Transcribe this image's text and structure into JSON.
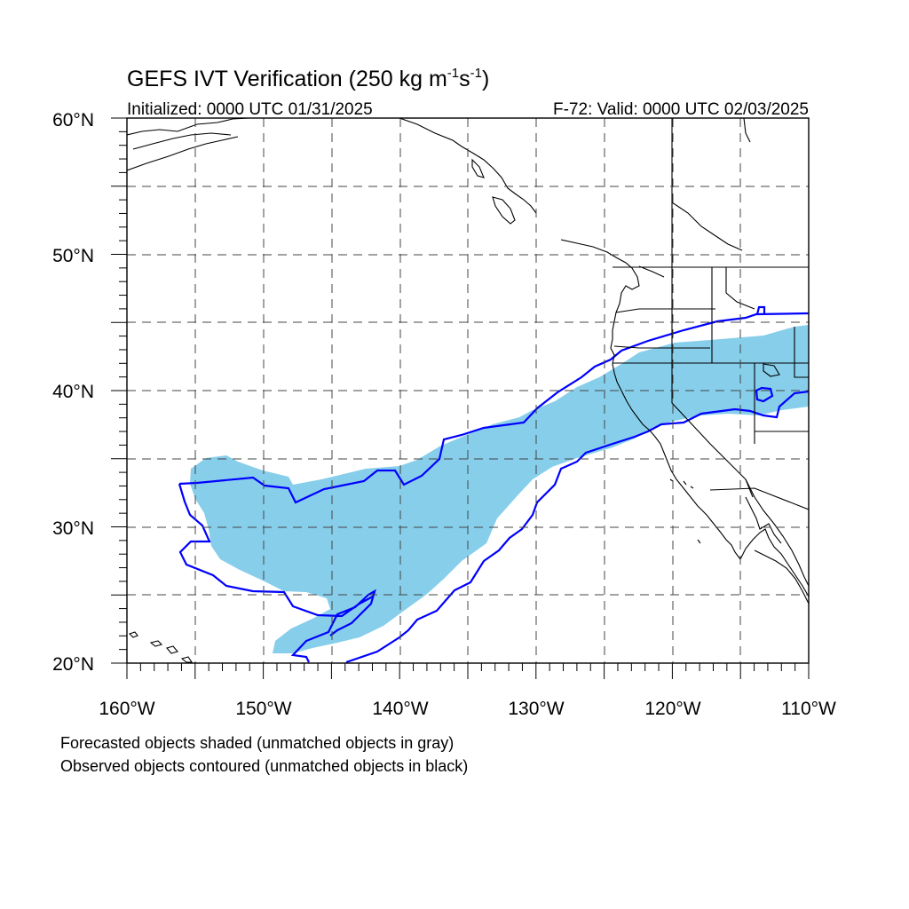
{
  "map": {
    "title_main": "GEFS IVT Verification (250 kg m",
    "title_exp1": "-1",
    "title_mid": "s",
    "title_exp2": "-1",
    "title_end": ")",
    "initialized": "Initialized: 0000 UTC 01/31/2025",
    "valid": "F-72: Valid: 0000 UTC 02/03/2025",
    "lat_labels": [
      "60°N",
      "50°N",
      "40°N",
      "30°N",
      "20°N"
    ],
    "lon_labels": [
      "160°W",
      "150°W",
      "140°W",
      "130°W",
      "120°W",
      "110°W"
    ],
    "extent": {
      "lon_min": -160,
      "lon_max": -110,
      "lat_min": 20,
      "lat_max": 60
    },
    "footnote_1": "Forecasted objects shaded (unmatched objects in gray)",
    "footnote_2": "Observed objects contoured (unmatched objects in black)",
    "colors": {
      "forecast_fill": "#87ceeb",
      "observed_contour": "#0000ff",
      "coast": "#000000",
      "grid": "#444444"
    }
  }
}
